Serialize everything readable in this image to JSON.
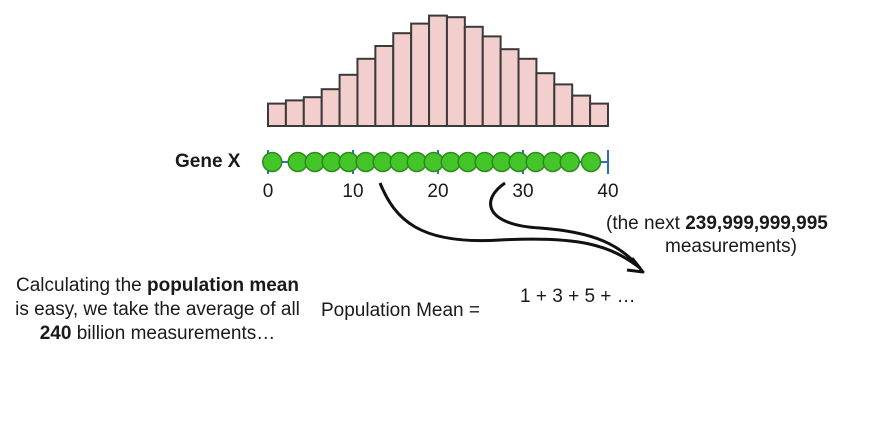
{
  "gene_label": "Gene X",
  "axis": {
    "ticks": [
      {
        "label": "0",
        "value": 0
      },
      {
        "label": "10",
        "value": 10
      },
      {
        "label": "20",
        "value": 20
      },
      {
        "label": "30",
        "value": 30
      },
      {
        "label": "40",
        "value": 40
      }
    ],
    "min": 0,
    "max": 40
  },
  "histogram": {
    "bar_heights": [
      1.4,
      1.6,
      1.8,
      2.3,
      3.2,
      4.2,
      5.0,
      5.8,
      6.4,
      6.9,
      6.8,
      6.2,
      5.6,
      4.8,
      4.2,
      3.3,
      2.6,
      1.9,
      1.4
    ],
    "fill_color": "#f2cfcc",
    "stroke_color": "#3a3a3a"
  },
  "points": {
    "values": [
      0.5,
      3.5,
      5.5,
      7.5,
      9.5,
      11.5,
      13.5,
      15.5,
      17.5,
      19.5,
      21.5,
      23.5,
      25.5,
      27.5,
      29.5,
      31.5,
      33.5,
      35.5,
      38
    ],
    "fill_color": "#44c52a",
    "stroke_color": "#2f8a1e"
  },
  "next_note": {
    "prefix": "(the next ",
    "count": "239,999,999,995",
    "line2": "measurements)"
  },
  "calc_text": {
    "part1": "Calculating the ",
    "bold1": "population mean",
    "part2": " is easy, we take the average of all ",
    "bold2": "240",
    "part3": " billion measurements…"
  },
  "formula": {
    "label": "Population Mean =",
    "numerator": "1 + 3 + 5 + …"
  }
}
